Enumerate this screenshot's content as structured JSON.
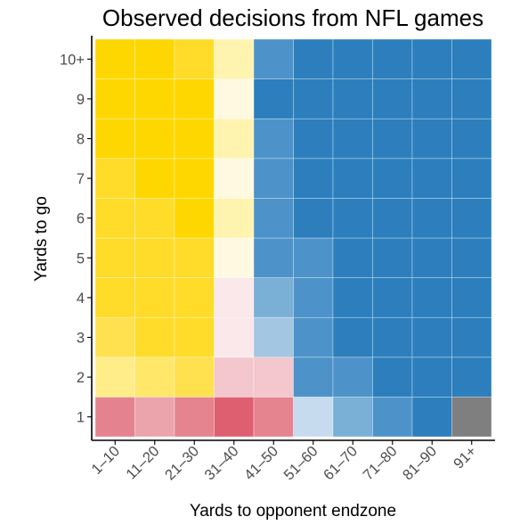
{
  "chart_data": {
    "type": "heatmap",
    "title": "Observed decisions from NFL games",
    "xlabel": "Yards to opponent endzone",
    "ylabel": "Yards to go",
    "x_categories": [
      "1–10",
      "11–20",
      "21–30",
      "31–40",
      "41–50",
      "51–60",
      "61–70",
      "71–80",
      "81–90",
      "91+"
    ],
    "y_categories": [
      "1",
      "2",
      "3",
      "4",
      "5",
      "6",
      "7",
      "8",
      "9",
      "10+"
    ],
    "grid": true,
    "legend": "none",
    "cell_colors": [
      [
        "#E4838F",
        "#EBA3AC",
        "#E5838F",
        "#DE5F70",
        "#E5838F",
        "#C6DCEE",
        "#7AAFD6",
        "#4D93C9",
        "#2C7FBC",
        "#7F7F7F"
      ],
      [
        "#FFED8A",
        "#FFE76A",
        "#FFE14F",
        "#F4C6CD",
        "#F4C6CD",
        "#4D93C9",
        "#4D93C9",
        "#2C7FBC",
        "#2C7FBC",
        "#2C7FBC"
      ],
      [
        "#FFE14F",
        "#FFDB2A",
        "#FFDB2A",
        "#FAE8EA",
        "#A3C6E2",
        "#4D93C9",
        "#2C7FBC",
        "#2C7FBC",
        "#2C7FBC",
        "#2C7FBC"
      ],
      [
        "#FFDB2A",
        "#FFDB2A",
        "#FFDB2A",
        "#FAE8EA",
        "#7AAFD6",
        "#4D93C9",
        "#2C7FBC",
        "#2C7FBC",
        "#2C7FBC",
        "#2C7FBC"
      ],
      [
        "#FFDB2A",
        "#FFDB2A",
        "#FFDB2A",
        "#FFF9E1",
        "#4D93C9",
        "#4D93C9",
        "#2C7FBC",
        "#2C7FBC",
        "#2C7FBC",
        "#2C7FBC"
      ],
      [
        "#FFDB2A",
        "#FFDB2A",
        "#FFD700",
        "#FFF3B0",
        "#4D93C9",
        "#2C7FBC",
        "#2C7FBC",
        "#2C7FBC",
        "#2C7FBC",
        "#2C7FBC"
      ],
      [
        "#FFDB2A",
        "#FFD700",
        "#FFD700",
        "#FFF9E1",
        "#4D93C9",
        "#2C7FBC",
        "#2C7FBC",
        "#2C7FBC",
        "#2C7FBC",
        "#2C7FBC"
      ],
      [
        "#FFD700",
        "#FFD700",
        "#FFD700",
        "#FFF3B0",
        "#4D93C9",
        "#2C7FBC",
        "#2C7FBC",
        "#2C7FBC",
        "#2C7FBC",
        "#2C7FBC"
      ],
      [
        "#FFD700",
        "#FFD700",
        "#FFD700",
        "#FFF9E1",
        "#2C7FBC",
        "#2C7FBC",
        "#2C7FBC",
        "#2C7FBC",
        "#2C7FBC",
        "#2C7FBC"
      ],
      [
        "#FFD700",
        "#FFD700",
        "#FFDB2A",
        "#FFF3B0",
        "#4D93C9",
        "#2C7FBC",
        "#2C7FBC",
        "#2C7FBC",
        "#2C7FBC",
        "#2C7FBC"
      ]
    ],
    "colors": {
      "yellow_strong": "#FFD700",
      "yellow_light": "#FFF9E1",
      "blue_strong": "#2C7FBC",
      "blue_light": "#C6DCEE",
      "red_strong": "#DE5F70",
      "red_light": "#FAE8EA",
      "missing": "#7F7F7F",
      "axis": "#000000",
      "tick_text": "#4d4d4d"
    }
  }
}
